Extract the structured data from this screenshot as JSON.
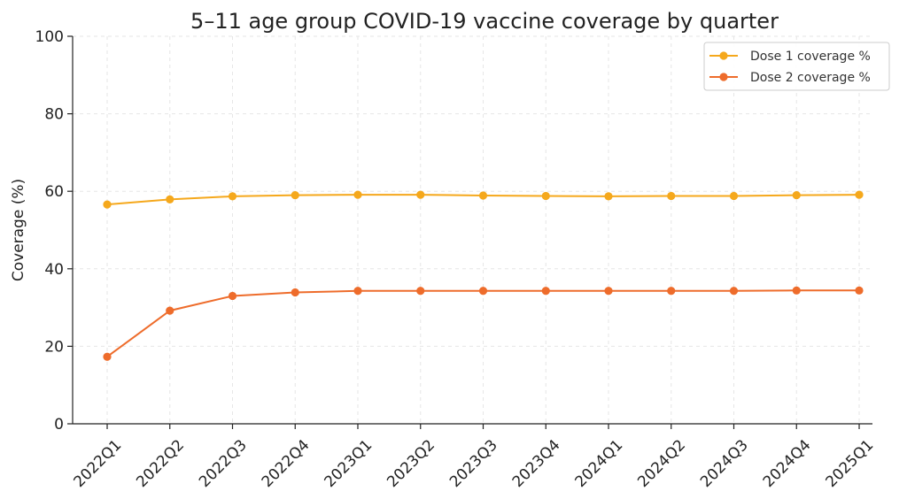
{
  "chart_data": {
    "type": "line",
    "title": "5–11 age group COVID-19 vaccine coverage by quarter",
    "xlabel": "",
    "ylabel": "Coverage (%)",
    "ylim": [
      0,
      100
    ],
    "yticks": [
      0,
      20,
      40,
      60,
      80,
      100
    ],
    "grid": true,
    "legend_position": "top-right",
    "categories": [
      "2022Q1",
      "2022Q2",
      "2022Q3",
      "2022Q4",
      "2023Q1",
      "2023Q2",
      "2023Q3",
      "2023Q4",
      "2024Q1",
      "2024Q2",
      "2024Q3",
      "2024Q4",
      "2025Q1"
    ],
    "series": [
      {
        "name": "Dose 1 coverage %",
        "color": "#F5A81C",
        "values": [
          56.6,
          57.9,
          58.7,
          59.0,
          59.1,
          59.1,
          58.9,
          58.8,
          58.7,
          58.8,
          58.8,
          59.0,
          59.1
        ]
      },
      {
        "name": "Dose 2 coverage %",
        "color": "#EE6C2B",
        "values": [
          17.3,
          29.2,
          33.0,
          33.9,
          34.3,
          34.3,
          34.3,
          34.3,
          34.3,
          34.3,
          34.3,
          34.4,
          34.4
        ]
      }
    ]
  }
}
